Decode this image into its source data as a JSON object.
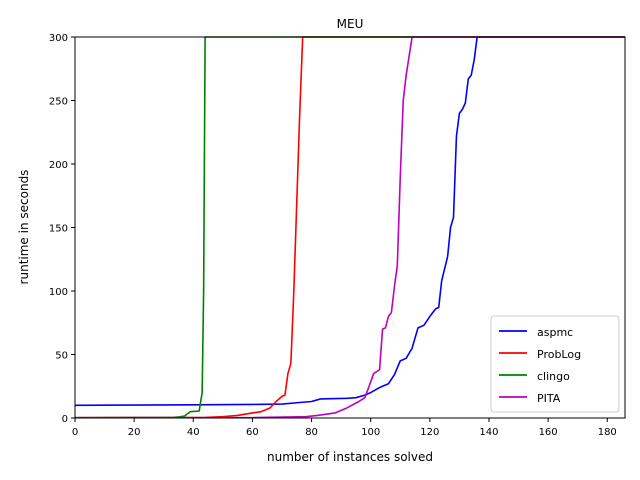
{
  "chart_data": {
    "type": "line",
    "title": "MEU",
    "xlabel": "number of instances solved",
    "ylabel": "runtime in seconds",
    "xlim": [
      0,
      186
    ],
    "ylim": [
      0,
      300
    ],
    "xticks": [
      0,
      20,
      40,
      60,
      80,
      100,
      120,
      140,
      160,
      180
    ],
    "yticks": [
      0,
      50,
      100,
      150,
      200,
      250,
      300
    ],
    "grid": false,
    "legend_position": "lower-right",
    "series": [
      {
        "name": "aspmc",
        "color": "#0000ff",
        "points": [
          [
            0,
            10
          ],
          [
            20,
            10.2
          ],
          [
            40,
            10.4
          ],
          [
            60,
            10.7
          ],
          [
            70,
            11
          ],
          [
            75,
            12
          ],
          [
            80,
            13
          ],
          [
            83,
            15
          ],
          [
            92,
            15.5
          ],
          [
            95,
            16
          ],
          [
            98,
            18
          ],
          [
            100,
            20
          ],
          [
            103,
            24
          ],
          [
            106,
            27
          ],
          [
            108,
            34
          ],
          [
            110,
            45
          ],
          [
            112,
            47
          ],
          [
            114,
            55
          ],
          [
            116,
            71
          ],
          [
            118,
            73
          ],
          [
            120,
            80
          ],
          [
            122,
            86
          ],
          [
            123,
            87
          ],
          [
            124,
            108
          ],
          [
            126,
            127
          ],
          [
            127,
            150
          ],
          [
            128,
            158
          ],
          [
            129,
            222
          ],
          [
            130,
            240
          ],
          [
            131,
            243
          ],
          [
            132,
            248
          ],
          [
            133,
            267
          ],
          [
            134,
            270
          ],
          [
            135,
            282
          ],
          [
            136,
            300
          ],
          [
            186,
            300
          ]
        ]
      },
      {
        "name": "ProbLog",
        "color": "#ff0000",
        "points": [
          [
            0,
            0.3
          ],
          [
            44,
            0.5
          ],
          [
            50,
            1
          ],
          [
            55,
            2
          ],
          [
            60,
            4
          ],
          [
            63,
            5
          ],
          [
            66,
            8
          ],
          [
            68,
            13
          ],
          [
            70,
            17
          ],
          [
            71,
            18
          ],
          [
            72,
            35
          ],
          [
            73,
            43
          ],
          [
            74,
            100
          ],
          [
            75,
            170
          ],
          [
            76,
            240
          ],
          [
            77,
            300
          ],
          [
            186,
            300
          ]
        ]
      },
      {
        "name": "clingo",
        "color": "#008000",
        "points": [
          [
            0,
            0.3
          ],
          [
            33,
            0.4
          ],
          [
            35,
            0.8
          ],
          [
            37,
            1.5
          ],
          [
            39,
            5
          ],
          [
            42,
            5.5
          ],
          [
            43,
            20
          ],
          [
            43.5,
            100
          ],
          [
            44,
            300
          ],
          [
            186,
            300
          ]
        ]
      },
      {
        "name": "PITA",
        "color": "#bf00bf",
        "points": [
          [
            0,
            0.2
          ],
          [
            60,
            0.3
          ],
          [
            78,
            1
          ],
          [
            82,
            2
          ],
          [
            88,
            4
          ],
          [
            92,
            8
          ],
          [
            96,
            13
          ],
          [
            98,
            16
          ],
          [
            99,
            22
          ],
          [
            101,
            35
          ],
          [
            103,
            38
          ],
          [
            104,
            70
          ],
          [
            105,
            71
          ],
          [
            106,
            80
          ],
          [
            107,
            83
          ],
          [
            108,
            103
          ],
          [
            109,
            120
          ],
          [
            110,
            190
          ],
          [
            111,
            250
          ],
          [
            112,
            270
          ],
          [
            113,
            285
          ],
          [
            114,
            300
          ],
          [
            186,
            300
          ]
        ]
      }
    ]
  }
}
